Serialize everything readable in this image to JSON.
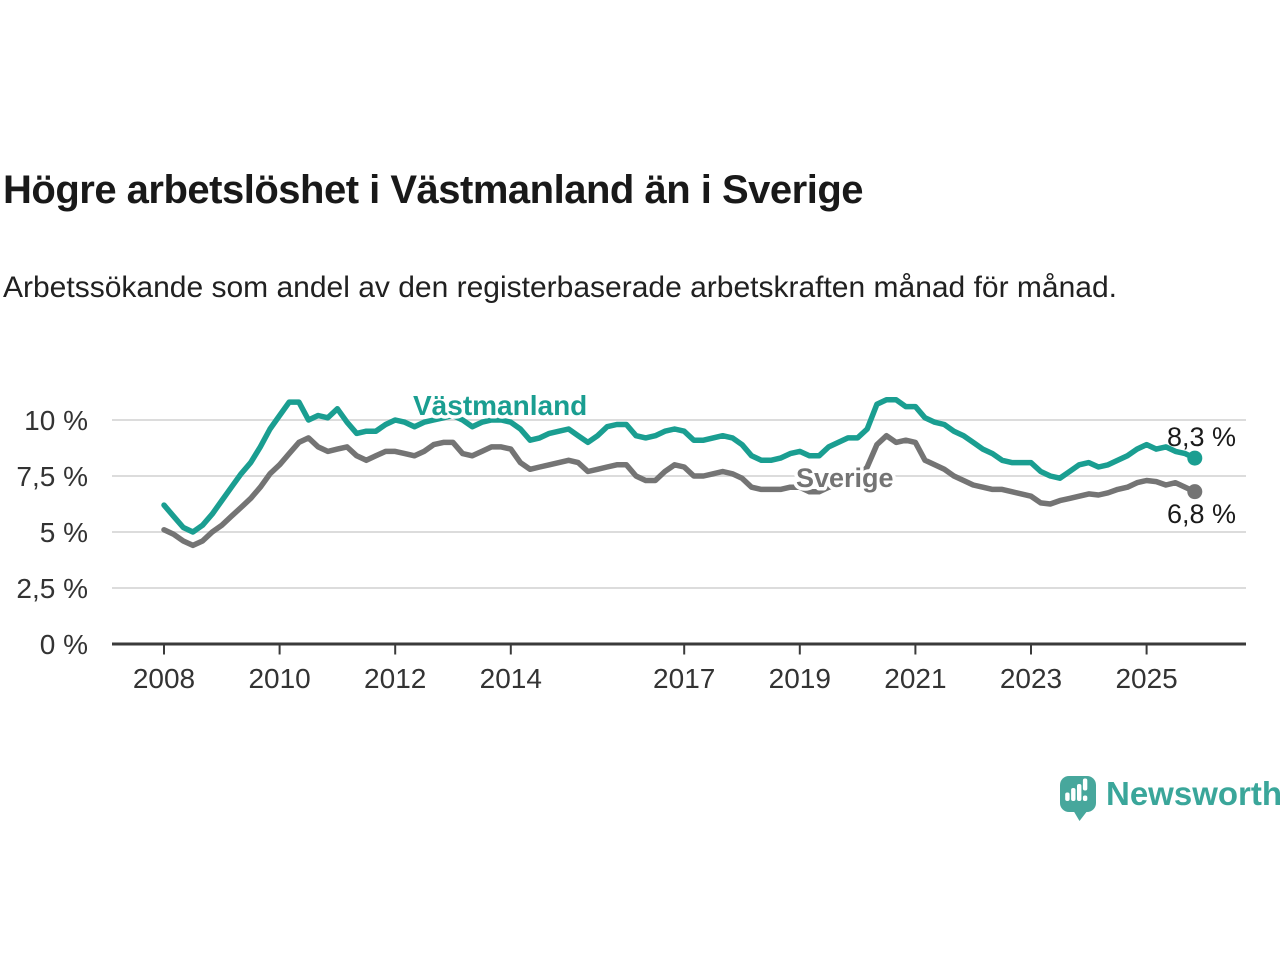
{
  "header": {
    "title": "Högre arbetslöshet i Västmanland än i Sverige",
    "subtitle": "Arbetssökande som andel av den registerbaserade arbetskraften månad för månad."
  },
  "chart_data": {
    "type": "line",
    "unit": "%",
    "grid": true,
    "legend_position": "inline-line-labels",
    "xlim": [
      2008,
      2025.92
    ],
    "ylim": [
      0,
      11.5
    ],
    "x_ticks": [
      2008,
      2010,
      2012,
      2014,
      2017,
      2019,
      2021,
      2023,
      2025
    ],
    "y_ticks": [
      {
        "value": 10,
        "label": "10 %"
      },
      {
        "value": 7.5,
        "label": "7,5 %"
      },
      {
        "value": 5,
        "label": "5 %"
      },
      {
        "value": 2.5,
        "label": "2,5 %"
      },
      {
        "value": 0,
        "label": "0 %"
      }
    ],
    "x_start": 2008.0,
    "x_step": 0.16667,
    "series": [
      {
        "name": "Västmanland",
        "color": "#1a9e91",
        "end_label": "8,3 %",
        "end_value": 8.3,
        "values": [
          6.2,
          5.7,
          5.2,
          5.0,
          5.3,
          5.8,
          6.4,
          7.0,
          7.6,
          8.1,
          8.8,
          9.6,
          10.2,
          10.8,
          10.8,
          10.0,
          10.2,
          10.1,
          10.5,
          9.9,
          9.4,
          9.5,
          9.5,
          9.8,
          10.0,
          9.9,
          9.7,
          9.9,
          10.0,
          10.1,
          10.2,
          10.0,
          9.7,
          9.9,
          10.0,
          10.0,
          9.9,
          9.6,
          9.1,
          9.2,
          9.4,
          9.5,
          9.6,
          9.3,
          9.0,
          9.3,
          9.7,
          9.8,
          9.8,
          9.3,
          9.2,
          9.3,
          9.5,
          9.6,
          9.5,
          9.1,
          9.1,
          9.2,
          9.3,
          9.2,
          8.9,
          8.4,
          8.2,
          8.2,
          8.3,
          8.5,
          8.6,
          8.4,
          8.4,
          8.8,
          9.0,
          9.2,
          9.2,
          9.6,
          10.7,
          10.9,
          10.9,
          10.6,
          10.6,
          10.1,
          9.9,
          9.8,
          9.5,
          9.3,
          9.0,
          8.7,
          8.5,
          8.2,
          8.1,
          8.1,
          8.1,
          7.7,
          7.5,
          7.4,
          7.7,
          8.0,
          8.1,
          7.9,
          8.0,
          8.2,
          8.4,
          8.7,
          8.9,
          8.7,
          8.8,
          8.6,
          8.5,
          8.3
        ]
      },
      {
        "name": "Sverige",
        "color": "#747474",
        "end_label": "6,8 %",
        "end_value": 6.8,
        "values": [
          5.1,
          4.9,
          4.6,
          4.4,
          4.6,
          5.0,
          5.3,
          5.7,
          6.1,
          6.5,
          7.0,
          7.6,
          8.0,
          8.5,
          9.0,
          9.2,
          8.8,
          8.6,
          8.7,
          8.8,
          8.4,
          8.2,
          8.4,
          8.6,
          8.6,
          8.5,
          8.4,
          8.6,
          8.9,
          9.0,
          9.0,
          8.5,
          8.4,
          8.6,
          8.8,
          8.8,
          8.7,
          8.1,
          7.8,
          7.9,
          8.0,
          8.1,
          8.2,
          8.1,
          7.7,
          7.8,
          7.9,
          8.0,
          8.0,
          7.5,
          7.3,
          7.3,
          7.7,
          8.0,
          7.9,
          7.5,
          7.5,
          7.6,
          7.7,
          7.6,
          7.4,
          7.0,
          6.9,
          6.9,
          6.9,
          7.0,
          7.0,
          6.8,
          6.8,
          7.0,
          7.1,
          7.3,
          7.4,
          7.9,
          8.9,
          9.3,
          9.0,
          9.1,
          9.0,
          8.2,
          8.0,
          7.8,
          7.5,
          7.3,
          7.1,
          7.0,
          6.9,
          6.9,
          6.8,
          6.7,
          6.6,
          6.3,
          6.25,
          6.4,
          6.5,
          6.6,
          6.7,
          6.65,
          6.75,
          6.9,
          7.0,
          7.2,
          7.3,
          7.25,
          7.1,
          7.2,
          7.0,
          6.8
        ]
      }
    ],
    "colors": {
      "grid": "#dcdcdc",
      "axis": "#3a3a3a",
      "tick_text": "#333333",
      "end_label_text": "#1a1a1a"
    }
  },
  "footer": {
    "brand": "Newsworthy",
    "brand_color": "#3aa69a",
    "icon_color": "#47a79c",
    "icon": "bar-chart-speech-bubble"
  }
}
